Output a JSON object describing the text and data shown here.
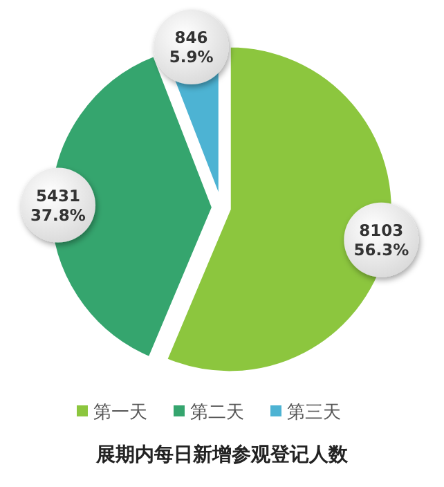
{
  "chart_data": {
    "type": "pie",
    "title": "展期内每日新增参观登记人数",
    "categories": [
      "第一天",
      "第二天",
      "第三天"
    ],
    "values": [
      8103,
      5431,
      846
    ],
    "value_labels": [
      "8103\n56.3%",
      "5431\n37.8%",
      "846\n5.9%"
    ],
    "colors": [
      "#8cc63e",
      "#35a56e",
      "#4db3d3"
    ],
    "legend": "bottom"
  }
}
